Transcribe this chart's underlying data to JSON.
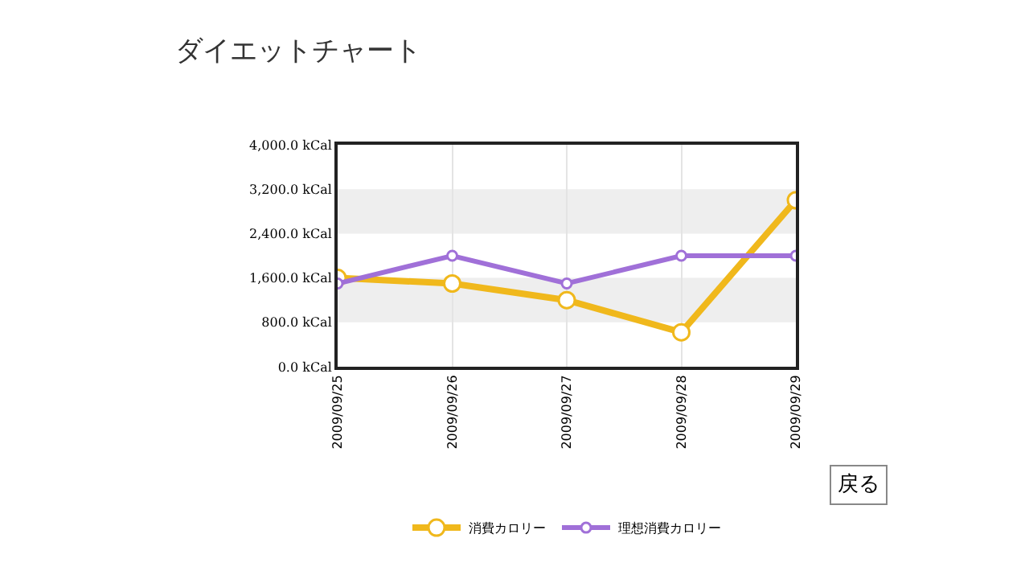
{
  "chart_data": {
    "type": "line",
    "title": "ダイエットチャート",
    "categories": [
      "2009/09/25",
      "2009/09/26",
      "2009/09/27",
      "2009/09/28",
      "2009/09/29"
    ],
    "series": [
      {
        "name": "消費カロリー",
        "color": "#f0b81c",
        "values": [
          1600,
          1500,
          1200,
          620,
          3000
        ]
      },
      {
        "name": "理想消費カロリー",
        "color": "#a070d8",
        "values": [
          1500,
          2000,
          1500,
          2000,
          2000
        ]
      }
    ],
    "ylim": [
      0,
      4000
    ],
    "yticks": [
      {
        "value": 0,
        "label": "0.0 kCal"
      },
      {
        "value": 800,
        "label": "800.0 kCal"
      },
      {
        "value": 1600,
        "label": "1,600.0 kCal"
      },
      {
        "value": 2400,
        "label": "2,400.0 kCal"
      },
      {
        "value": 3200,
        "label": "3,200.0 kCal"
      },
      {
        "value": 4000,
        "label": "4,000.0 kCal"
      }
    ],
    "bands": [
      {
        "axis": "y",
        "from": 800,
        "to": 1600,
        "color": "#eeeeee"
      },
      {
        "axis": "y",
        "from": 2400,
        "to": 3200,
        "color": "#eeeeee"
      }
    ],
    "annotations": [
      "戻る"
    ],
    "grid": "x",
    "legend": "bottom",
    "marker": "circle",
    "line_style": "solid"
  }
}
